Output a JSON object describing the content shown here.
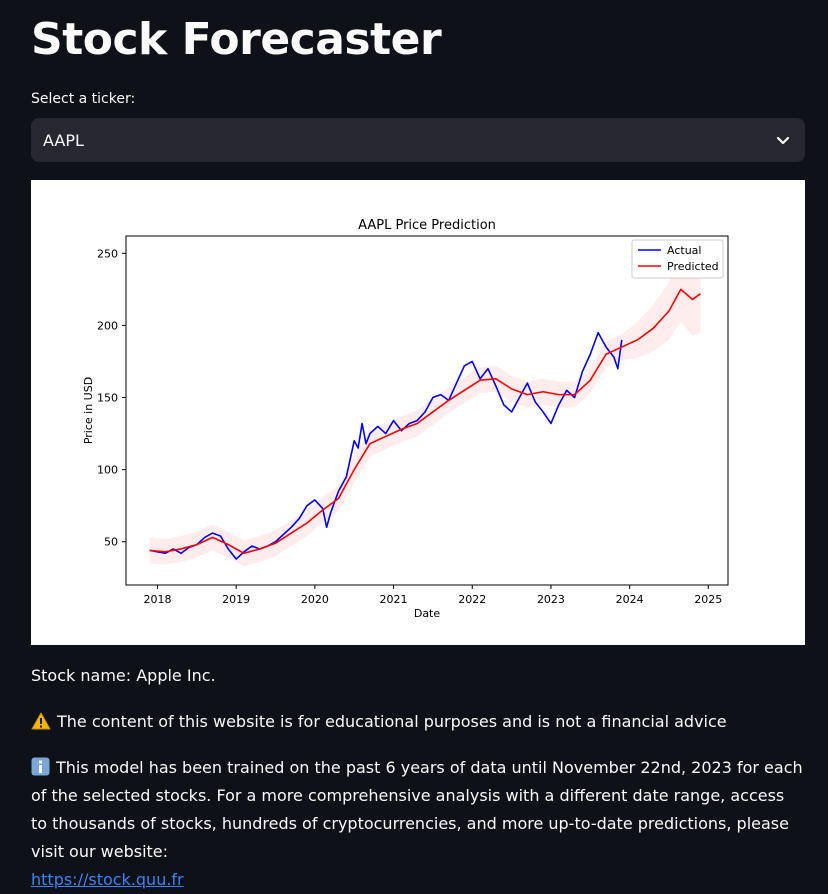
{
  "page": {
    "title": "Stock Forecaster"
  },
  "selector": {
    "label": "Select a ticker:",
    "value": "AAPL",
    "icon": "chevron-down-icon"
  },
  "chart_data": {
    "type": "line",
    "title": "AAPL Price Prediction",
    "xlabel": "Date",
    "ylabel": "Price in USD",
    "xlim": [
      2017.6,
      2025.25
    ],
    "ylim": [
      20,
      262
    ],
    "x_ticks": [
      2018,
      2019,
      2020,
      2021,
      2022,
      2023,
      2024,
      2025
    ],
    "y_ticks": [
      50,
      100,
      150,
      200,
      250
    ],
    "legend": "top-right",
    "grid": false,
    "series": [
      {
        "name": "Actual",
        "color": "#0000ff",
        "x": [
          2017.9,
          2018.0,
          2018.1,
          2018.2,
          2018.3,
          2018.4,
          2018.5,
          2018.6,
          2018.7,
          2018.8,
          2018.9,
          2019.0,
          2019.1,
          2019.2,
          2019.3,
          2019.4,
          2019.5,
          2019.6,
          2019.7,
          2019.8,
          2019.9,
          2020.0,
          2020.1,
          2020.15,
          2020.2,
          2020.3,
          2020.4,
          2020.5,
          2020.55,
          2020.6,
          2020.65,
          2020.7,
          2020.8,
          2020.9,
          2021.0,
          2021.1,
          2021.2,
          2021.3,
          2021.4,
          2021.5,
          2021.6,
          2021.7,
          2021.8,
          2021.9,
          2022.0,
          2022.1,
          2022.2,
          2022.3,
          2022.4,
          2022.5,
          2022.6,
          2022.7,
          2022.8,
          2022.9,
          2023.0,
          2023.1,
          2023.2,
          2023.3,
          2023.4,
          2023.5,
          2023.6,
          2023.7,
          2023.8,
          2023.85,
          2023.9
        ],
        "y": [
          44,
          43,
          42,
          45,
          42,
          46,
          48,
          53,
          56,
          54,
          45,
          38,
          43,
          47,
          45,
          47,
          50,
          55,
          60,
          66,
          75,
          79,
          73,
          60,
          70,
          85,
          95,
          120,
          115,
          132,
          118,
          125,
          130,
          125,
          134,
          127,
          132,
          134,
          140,
          150,
          152,
          148,
          160,
          172,
          175,
          163,
          170,
          158,
          145,
          140,
          150,
          160,
          147,
          140,
          132,
          145,
          155,
          150,
          168,
          180,
          195,
          185,
          178,
          170,
          190
        ],
        "y_range": [
          38,
          196
        ]
      },
      {
        "name": "Predicted",
        "color": "#ff0000",
        "x": [
          2017.9,
          2018.1,
          2018.3,
          2018.5,
          2018.7,
          2018.9,
          2019.1,
          2019.3,
          2019.5,
          2019.7,
          2019.9,
          2020.1,
          2020.3,
          2020.5,
          2020.7,
          2020.9,
          2021.1,
          2021.3,
          2021.5,
          2021.7,
          2021.9,
          2022.1,
          2022.3,
          2022.5,
          2022.7,
          2022.9,
          2023.1,
          2023.3,
          2023.5,
          2023.7,
          2023.9,
          2024.1,
          2024.3,
          2024.5,
          2024.65,
          2024.8,
          2024.9
        ],
        "y": [
          44,
          43,
          45,
          48,
          53,
          48,
          42,
          45,
          49,
          56,
          63,
          72,
          80,
          100,
          118,
          123,
          128,
          132,
          140,
          148,
          155,
          162,
          163,
          156,
          152,
          154,
          152,
          152,
          162,
          180,
          185,
          190,
          198,
          210,
          225,
          218,
          222
        ],
        "y_range": [
          42,
          225
        ]
      }
    ]
  },
  "info": {
    "stock_name": "Stock name: Apple Inc.",
    "warning": "The content of this website is for educational purposes and is not a financial advice",
    "model_note": "This model has been trained on the past 6 years of data until November 22nd, 2023 for each of the selected stocks. For a more comprehensive analysis with a different date range, access to thousands of stocks, hundreds of cryptocurrencies, and more up-to-date predictions, please visit our website:",
    "link_text": "https://stock.quu.fr",
    "link_color": "#3b82f6"
  }
}
